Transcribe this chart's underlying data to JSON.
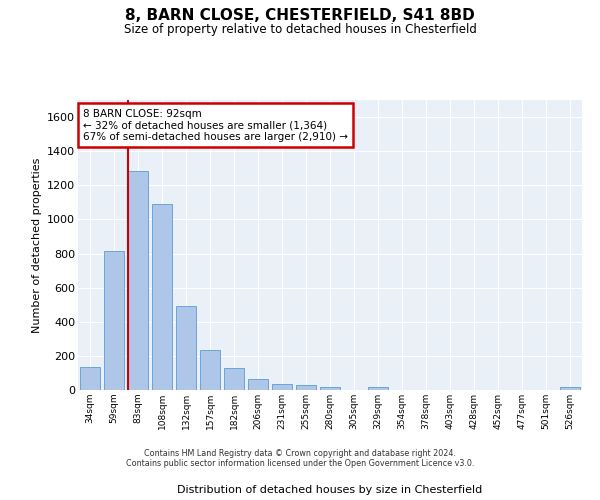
{
  "title": "8, BARN CLOSE, CHESTERFIELD, S41 8BD",
  "subtitle": "Size of property relative to detached houses in Chesterfield",
  "xlabel": "Distribution of detached houses by size in Chesterfield",
  "ylabel": "Number of detached properties",
  "bar_color": "#aec6e8",
  "bar_edge_color": "#5b9bd5",
  "background_color": "#eaf0f8",
  "grid_color": "#ffffff",
  "annotation_box_color": "#cc0000",
  "categories": [
    "34sqm",
    "59sqm",
    "83sqm",
    "108sqm",
    "132sqm",
    "157sqm",
    "182sqm",
    "206sqm",
    "231sqm",
    "255sqm",
    "280sqm",
    "305sqm",
    "329sqm",
    "354sqm",
    "378sqm",
    "403sqm",
    "428sqm",
    "452sqm",
    "477sqm",
    "501sqm",
    "526sqm"
  ],
  "values": [
    135,
    815,
    1285,
    1090,
    490,
    235,
    130,
    65,
    38,
    27,
    15,
    0,
    15,
    0,
    0,
    0,
    0,
    0,
    0,
    0,
    15
  ],
  "ylim": [
    0,
    1700
  ],
  "yticks": [
    0,
    200,
    400,
    600,
    800,
    1000,
    1200,
    1400,
    1600
  ],
  "vline_x_index": 2,
  "annotation_text_line1": "8 BARN CLOSE: 92sqm",
  "annotation_text_line2": "← 32% of detached houses are smaller (1,364)",
  "annotation_text_line3": "67% of semi-detached houses are larger (2,910) →",
  "vline_color": "#cc0000",
  "footer_line1": "Contains HM Land Registry data © Crown copyright and database right 2024.",
  "footer_line2": "Contains public sector information licensed under the Open Government Licence v3.0."
}
